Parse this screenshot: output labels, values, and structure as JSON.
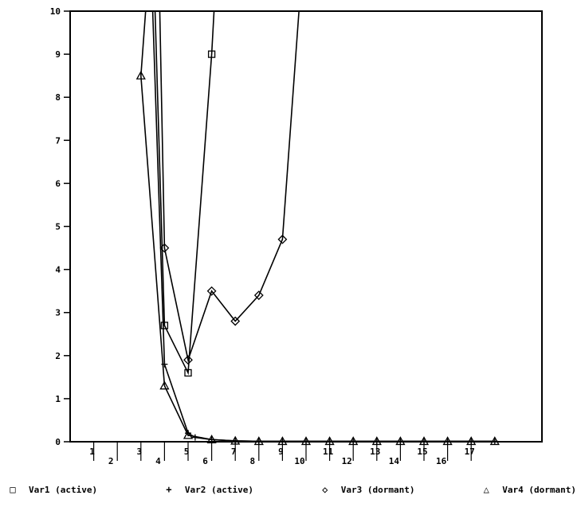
{
  "chart_data": {
    "type": "line",
    "title": "",
    "xlabel": "",
    "ylabel": "",
    "xlim": [
      0,
      20
    ],
    "ylim": [
      0,
      10
    ],
    "grid": false,
    "legend_position": "bottom",
    "y_ticks": [
      0,
      1,
      2,
      3,
      4,
      5,
      6,
      7,
      8,
      9,
      10
    ],
    "y_tick_labels": [
      "0",
      "1",
      "2",
      "3",
      "4",
      "5",
      "6",
      "7",
      "8",
      "9",
      "10"
    ],
    "x_ticks": [
      1,
      2,
      3,
      4,
      5,
      6,
      7,
      8,
      9,
      10,
      11,
      12,
      13,
      14,
      15,
      16,
      17
    ],
    "x_tick_labels": [
      "1",
      "2",
      "3",
      "4",
      "5",
      "6",
      "7",
      "8",
      "9",
      "10",
      "11",
      "12",
      "13",
      "14",
      "15",
      "16",
      "17"
    ],
    "series": [
      {
        "name": "Var1 (active)",
        "symbol": "□",
        "x": [
          3.6,
          4,
          5,
          6,
          6.1
        ],
        "y": [
          10,
          2.7,
          1.6,
          9.0,
          10
        ]
      },
      {
        "name": "Var2 (active)",
        "symbol": "+",
        "x": [
          3.5,
          4,
          5,
          5.3,
          6,
          7,
          8,
          9,
          10,
          11,
          12,
          13,
          14,
          15,
          16,
          17,
          18
        ],
        "y": [
          10,
          1.8,
          0.2,
          0.1,
          0.05,
          0.02,
          0.01,
          0.01,
          0.01,
          0.01,
          0.01,
          0.01,
          0.01,
          0.01,
          0.01,
          0.01,
          0.01
        ]
      },
      {
        "name": "Var3 (dormant)",
        "symbol": "◇",
        "x": [
          3.8,
          4,
          5,
          6,
          7,
          8,
          9,
          9.7
        ],
        "y": [
          10,
          4.5,
          1.9,
          3.5,
          2.8,
          3.4,
          4.7,
          10
        ]
      },
      {
        "name": "Var4 (dormant)",
        "symbol": "△",
        "x": [
          3.2,
          3,
          4,
          5,
          6,
          7,
          8,
          9,
          10,
          11,
          12,
          13,
          14,
          15,
          16,
          17,
          18
        ],
        "y": [
          10,
          8.5,
          1.3,
          0.15,
          0.05,
          0.02,
          0.01,
          0.01,
          0.01,
          0.01,
          0.01,
          0.01,
          0.01,
          0.01,
          0.01,
          0.01,
          0.01
        ]
      }
    ]
  }
}
